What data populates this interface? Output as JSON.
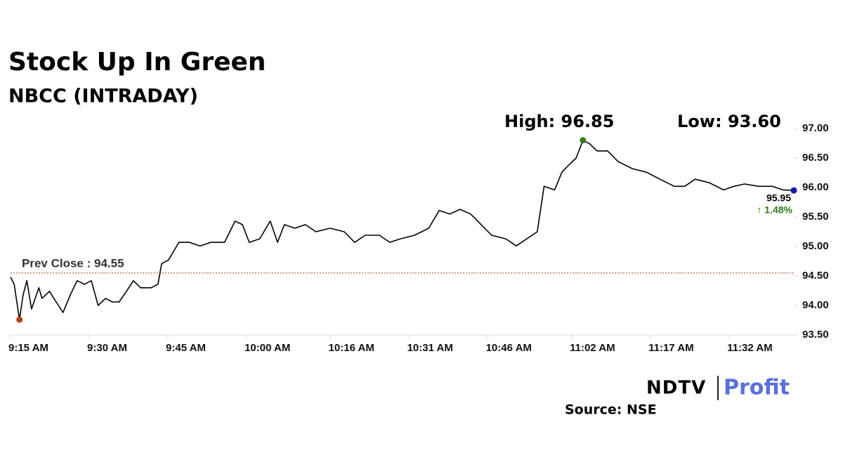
{
  "chart_data": {
    "type": "line",
    "title": "Stock Up In Green",
    "subtitle": "NBCC (INTRADAY)",
    "x": [
      0,
      0.7,
      1.7,
      2.4,
      3.1,
      4.0,
      5.4,
      6.0,
      7.4,
      8.7,
      10.0,
      11.4,
      12.7,
      14.1,
      15.4,
      16.7,
      18.1,
      19.4,
      20.7,
      22.1,
      23.4,
      24.8,
      26.8,
      28.1,
      28.8,
      30.1,
      32.1,
      34.1,
      36.1,
      38.2,
      40.8,
      42.8,
      44.2,
      45.5,
      47.5,
      49.5,
      50.9,
      52.2,
      54.2,
      56.2,
      58.2,
      60.9,
      63.6,
      65.6,
      67.6,
      70.3,
      72.3,
      74.3,
      77.0,
      79.7,
      81.7,
      83.7,
      85.7,
      87.7,
      89.7,
      91.7,
      94.4,
      96.4,
      98.4,
      100.4,
      101.7,
      103.7,
      105.1,
      106.4,
      107.8,
      109.1,
      110.4,
      111.8,
      113.8,
      115.8,
      118.5,
      121.2,
      123.8,
      126.5,
      128.5,
      130.5,
      133.2,
      135.9,
      137.9,
      139.9,
      142.6,
      145.2,
      147.2,
      149.3
    ],
    "series": [
      {
        "color": "#000000",
        "values": [
          94.48,
          94.36,
          93.76,
          94.18,
          94.42,
          93.94,
          94.3,
          94.12,
          94.24,
          94.06,
          93.88,
          94.18,
          94.42,
          94.36,
          94.42,
          94.0,
          94.12,
          94.06,
          94.06,
          94.24,
          94.42,
          94.3,
          94.3,
          94.36,
          94.71,
          94.77,
          95.07,
          95.07,
          95.01,
          95.07,
          95.07,
          95.43,
          95.37,
          95.07,
          95.13,
          95.43,
          95.07,
          95.37,
          95.31,
          95.37,
          95.25,
          95.31,
          95.25,
          95.07,
          95.19,
          95.19,
          95.07,
          95.13,
          95.19,
          95.31,
          95.61,
          95.55,
          95.63,
          95.55,
          95.37,
          95.19,
          95.13,
          95.01,
          95.13,
          95.25,
          96.02,
          95.96,
          96.26,
          96.38,
          96.5,
          96.8,
          96.74,
          96.62,
          96.62,
          96.44,
          96.32,
          96.26,
          96.14,
          96.02,
          96.02,
          96.14,
          96.08,
          95.96,
          96.02,
          96.06,
          96.02,
          96.02,
          95.96,
          95.95
        ]
      }
    ],
    "highlights": [
      {
        "point": 2,
        "color": "#b5451b"
      },
      {
        "point": 65,
        "color": "#3a7a1a"
      },
      {
        "point": 83,
        "color": "#1a1aa8"
      }
    ],
    "xlim": [
      0,
      149.3
    ],
    "xticks": [
      {
        "value": 0,
        "label": "9:15 AM"
      },
      {
        "value": 15,
        "label": "9:30 AM"
      },
      {
        "value": 30,
        "label": "9:45 AM"
      },
      {
        "value": 45,
        "label": "10:00 AM"
      },
      {
        "value": 61,
        "label": "10:16 AM"
      },
      {
        "value": 76,
        "label": "10:31 AM"
      },
      {
        "value": 91,
        "label": "10:46 AM"
      },
      {
        "value": 107,
        "label": "11:02 AM"
      },
      {
        "value": 122,
        "label": "11:17 AM"
      },
      {
        "value": 137,
        "label": "11:32 AM"
      }
    ],
    "ylim": [
      93.5,
      97.0
    ],
    "yticks": [
      {
        "value": 93.5,
        "label": "93.50"
      },
      {
        "value": 94,
        "label": "94.00"
      },
      {
        "value": 94.5,
        "label": "94.50"
      },
      {
        "value": 95,
        "label": "95.00"
      },
      {
        "value": 95.5,
        "label": "95.50"
      },
      {
        "value": 96,
        "label": "96.00"
      },
      {
        "value": 96.5,
        "label": "96.50"
      },
      {
        "value": 97,
        "label": "97.00"
      }
    ],
    "reference_line": {
      "value": 94.55,
      "label": "Prev Close : 94.55",
      "color": "#a0522d"
    },
    "high_label": "High: 96.85",
    "low_label": "Low: 93.60",
    "last_price_label": "95.95",
    "change_label": "↑ 1.48%",
    "source": "Source: NSE",
    "logo": {
      "left": "NDTV",
      "right": "Profit"
    }
  }
}
